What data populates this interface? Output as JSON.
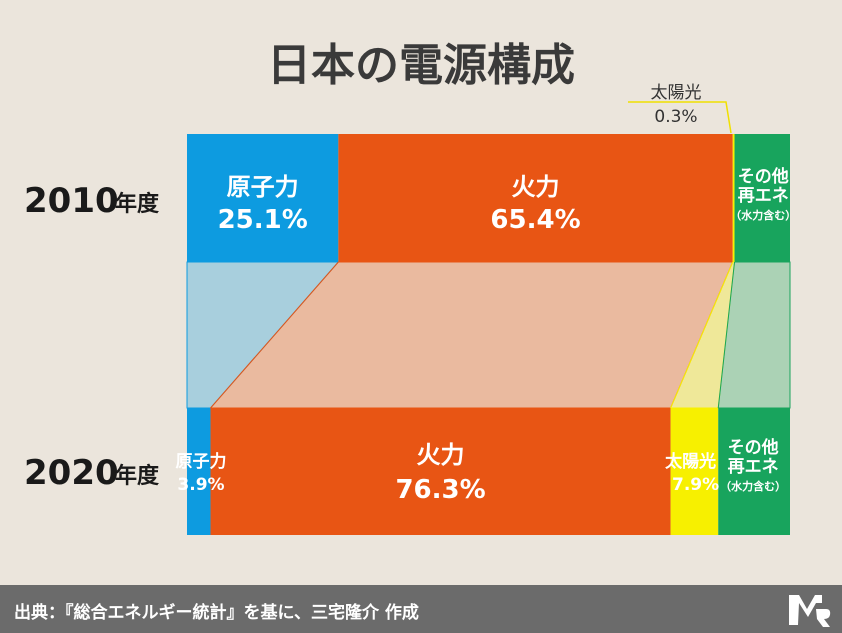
{
  "title": "日本の電源構成",
  "colors": {
    "nuclear": "#0d9be0",
    "thermal": "#e85514",
    "solar": "#f7f000",
    "renewable": "#18a45d",
    "background": "#ebe5dc",
    "footer": "#6b6b6b"
  },
  "chart_data": {
    "type": "bar",
    "stacked": "100%",
    "title": "日本の電源構成",
    "categories": [
      "2010",
      "2020"
    ],
    "category_labels": [
      {
        "year": "2010",
        "suffix": "年度"
      },
      {
        "year": "2020",
        "suffix": "年度"
      }
    ],
    "series": [
      {
        "name": "原子力",
        "values": [
          25.1,
          3.9
        ],
        "labels": [
          "25.1%",
          "3.9%"
        ]
      },
      {
        "name": "火力",
        "values": [
          65.4,
          76.3
        ],
        "labels": [
          "65.4%",
          "76.3%"
        ]
      },
      {
        "name": "太陽光",
        "values": [
          0.3,
          7.9
        ],
        "labels": [
          "0.3%",
          "7.9%"
        ]
      },
      {
        "name": "その他再エネ",
        "values": [
          9.2,
          11.9
        ],
        "display_lines": [
          "その他",
          "再エネ"
        ],
        "note": "（水力含む）"
      }
    ]
  },
  "footer": {
    "source": "出典：『総合エネルギー統計』を基に、三宅隆介 作成",
    "logo_icon": "mr-logo-icon"
  }
}
